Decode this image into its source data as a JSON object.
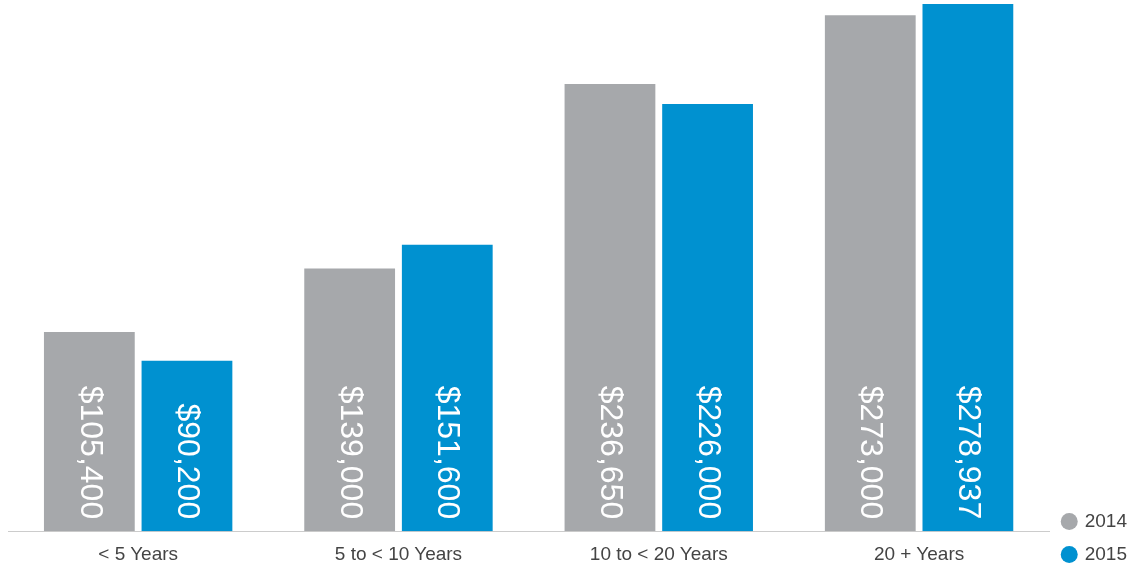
{
  "chart_data": {
    "type": "bar",
    "categories": [
      "< 5 Years",
      "5 to < 10 Years",
      "10 to < 20 Years",
      "20 + Years"
    ],
    "series": [
      {
        "name": "2014",
        "color": "#a6a8ab",
        "values": [
          105400,
          139000,
          236650,
          273000
        ],
        "value_labels": [
          "$105,400",
          "$139,000",
          "$236,650",
          "$273,000"
        ]
      },
      {
        "name": "2015",
        "color": "#0091d0",
        "values": [
          90200,
          151600,
          226000,
          278937
        ],
        "value_labels": [
          "$90,200",
          "$151,600",
          "$226,000",
          "$278,937"
        ]
      }
    ],
    "legend": "bottom right",
    "grid": false,
    "tick_labels": "x"
  }
}
